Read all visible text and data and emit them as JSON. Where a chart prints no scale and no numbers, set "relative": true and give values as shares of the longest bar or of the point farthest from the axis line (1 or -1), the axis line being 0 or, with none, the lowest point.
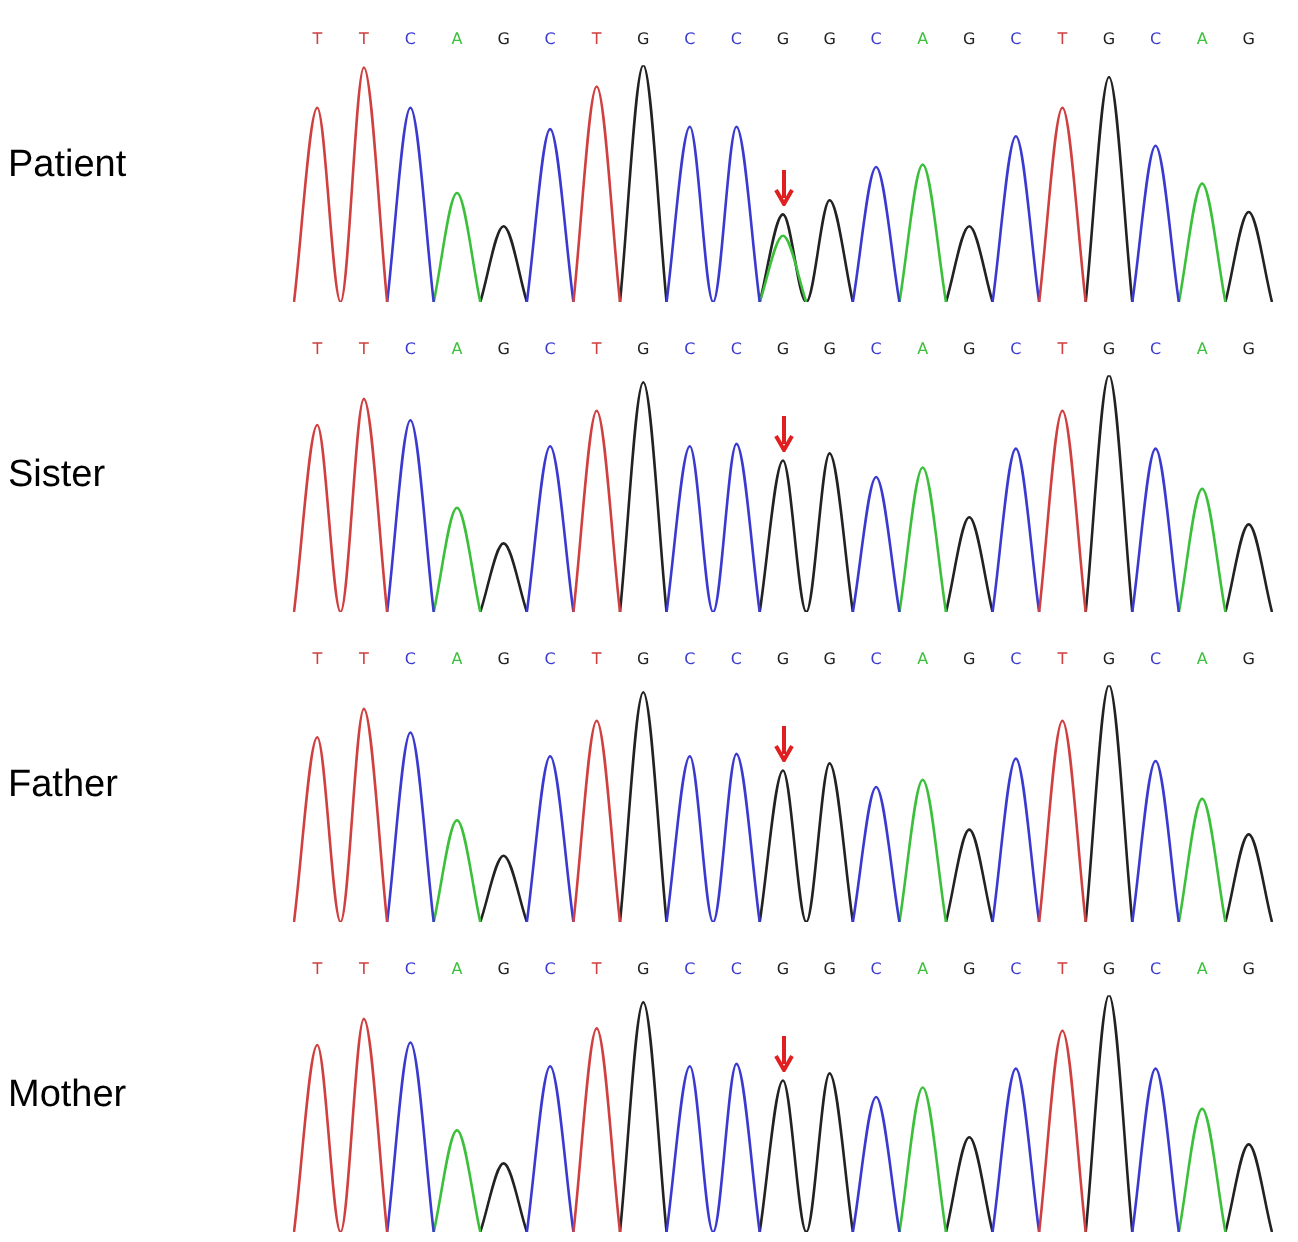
{
  "chart_data": [
    {
      "type": "line",
      "ylabel": "Patient",
      "relative": true,
      "legend": false,
      "grid": false,
      "marker": "none",
      "categories": [
        null,
        "T",
        null,
        "T",
        null,
        "C",
        null,
        "A",
        null,
        "G",
        null,
        "C",
        null,
        "T",
        null,
        "G",
        null,
        "C",
        null,
        "C",
        null,
        "G",
        null,
        "G",
        null,
        "C",
        null,
        "A",
        null,
        "G",
        null,
        "C",
        null,
        "T",
        null,
        "G",
        null,
        "C",
        null,
        "A",
        null,
        "G",
        null
      ],
      "series": [
        {
          "color": "#d04040",
          "values": [
            0,
            0.82,
            0,
            0.99,
            0,
            null,
            null,
            null,
            null,
            null,
            null,
            null,
            0,
            0.91,
            0,
            null,
            null,
            null,
            null,
            null,
            null,
            null,
            null,
            null,
            null,
            null,
            null,
            null,
            null,
            null,
            null,
            null,
            0,
            0.82,
            0,
            null,
            null,
            null,
            null,
            null,
            null,
            null,
            null
          ]
        },
        {
          "color": "#3a3ad0",
          "values": [
            null,
            null,
            null,
            null,
            0,
            0.82,
            0,
            null,
            null,
            null,
            0,
            0.73,
            0,
            null,
            null,
            null,
            0,
            0.74,
            0,
            0.74,
            0,
            null,
            null,
            null,
            0,
            0.57,
            0,
            null,
            null,
            null,
            0,
            0.7,
            0,
            null,
            null,
            null,
            0,
            0.66,
            0,
            null,
            null,
            null,
            null
          ]
        },
        {
          "color": "#3cc03c",
          "values": [
            null,
            null,
            null,
            null,
            null,
            null,
            0,
            0.46,
            0,
            null,
            null,
            null,
            null,
            null,
            null,
            null,
            null,
            null,
            null,
            null,
            0,
            0.28,
            0,
            null,
            null,
            null,
            0,
            0.58,
            0,
            null,
            null,
            null,
            null,
            null,
            null,
            null,
            null,
            null,
            0,
            0.5,
            0,
            null,
            null
          ]
        },
        {
          "color": "#222222",
          "values": [
            null,
            null,
            null,
            null,
            null,
            null,
            null,
            null,
            0,
            0.32,
            0,
            null,
            null,
            null,
            0,
            1,
            0,
            null,
            null,
            null,
            0,
            0.37,
            0,
            0.43,
            0,
            null,
            null,
            null,
            0,
            0.32,
            0,
            null,
            null,
            null,
            0,
            0.95,
            0,
            null,
            null,
            null,
            0,
            0.38,
            0
          ]
        }
      ]
    },
    {
      "type": "line",
      "ylabel": "Sister",
      "relative": true,
      "legend": false,
      "grid": false,
      "marker": "none",
      "categories": [
        null,
        "T",
        null,
        "T",
        null,
        "C",
        null,
        "A",
        null,
        "G",
        null,
        "C",
        null,
        "T",
        null,
        "G",
        null,
        "C",
        null,
        "C",
        null,
        "G",
        null,
        "G",
        null,
        "C",
        null,
        "A",
        null,
        "G",
        null,
        "C",
        null,
        "T",
        null,
        "G",
        null,
        "C",
        null,
        "A",
        null,
        "G",
        null
      ],
      "series": [
        {
          "color": "#d04040",
          "values": [
            0,
            0.79,
            0,
            0.9,
            0,
            null,
            null,
            null,
            null,
            null,
            null,
            null,
            0,
            0.85,
            0,
            null,
            null,
            null,
            null,
            null,
            null,
            null,
            null,
            null,
            null,
            null,
            null,
            null,
            null,
            null,
            null,
            null,
            0,
            0.85,
            0,
            null,
            null,
            null,
            null,
            null,
            null,
            null,
            null
          ]
        },
        {
          "color": "#3a3ad0",
          "values": [
            null,
            null,
            null,
            null,
            0,
            0.81,
            0,
            null,
            null,
            null,
            0,
            0.7,
            0,
            null,
            null,
            null,
            0,
            0.7,
            0,
            0.71,
            0,
            null,
            null,
            null,
            0,
            0.57,
            0,
            null,
            null,
            null,
            0,
            0.69,
            0,
            null,
            null,
            null,
            0,
            0.69,
            0,
            null,
            null,
            null,
            null
          ]
        },
        {
          "color": "#3cc03c",
          "values": [
            null,
            null,
            null,
            null,
            null,
            null,
            0,
            0.44,
            0,
            null,
            null,
            null,
            null,
            null,
            null,
            null,
            null,
            null,
            null,
            null,
            null,
            null,
            null,
            null,
            null,
            null,
            0,
            0.61,
            0,
            null,
            null,
            null,
            null,
            null,
            null,
            null,
            null,
            null,
            0,
            0.52,
            0,
            null,
            null
          ]
        },
        {
          "color": "#222222",
          "values": [
            null,
            null,
            null,
            null,
            null,
            null,
            null,
            null,
            0,
            0.29,
            0,
            null,
            null,
            null,
            0,
            0.97,
            0,
            null,
            null,
            null,
            0,
            0.64,
            0,
            0.67,
            0,
            null,
            null,
            null,
            0,
            0.4,
            0,
            null,
            null,
            null,
            0,
            1,
            0,
            null,
            null,
            null,
            0,
            0.37,
            0
          ]
        }
      ]
    },
    {
      "type": "line",
      "ylabel": "Father",
      "relative": true,
      "legend": false,
      "grid": false,
      "marker": "none",
      "categories": [
        null,
        "T",
        null,
        "T",
        null,
        "C",
        null,
        "A",
        null,
        "G",
        null,
        "C",
        null,
        "T",
        null,
        "G",
        null,
        "C",
        null,
        "C",
        null,
        "G",
        null,
        "G",
        null,
        "C",
        null,
        "A",
        null,
        "G",
        null,
        "C",
        null,
        "T",
        null,
        "G",
        null,
        "C",
        null,
        "A",
        null,
        "G",
        null
      ],
      "series": [
        {
          "color": "#d04040",
          "values": [
            0,
            0.78,
            0,
            0.9,
            0,
            null,
            null,
            null,
            null,
            null,
            null,
            null,
            0,
            0.85,
            0,
            null,
            null,
            null,
            null,
            null,
            null,
            null,
            null,
            null,
            null,
            null,
            null,
            null,
            null,
            null,
            null,
            null,
            0,
            0.85,
            0,
            null,
            null,
            null,
            null,
            null,
            null,
            null,
            null
          ]
        },
        {
          "color": "#3a3ad0",
          "values": [
            null,
            null,
            null,
            null,
            0,
            0.8,
            0,
            null,
            null,
            null,
            0,
            0.7,
            0,
            null,
            null,
            null,
            0,
            0.7,
            0,
            0.71,
            0,
            null,
            null,
            null,
            0,
            0.57,
            0,
            null,
            null,
            null,
            0,
            0.69,
            0,
            null,
            null,
            null,
            0,
            0.68,
            0,
            null,
            null,
            null,
            null
          ]
        },
        {
          "color": "#3cc03c",
          "values": [
            null,
            null,
            null,
            null,
            null,
            null,
            0,
            0.43,
            0,
            null,
            null,
            null,
            null,
            null,
            null,
            null,
            null,
            null,
            null,
            null,
            null,
            null,
            null,
            null,
            null,
            null,
            0,
            0.6,
            0,
            null,
            null,
            null,
            null,
            null,
            null,
            null,
            null,
            null,
            0,
            0.52,
            0,
            null,
            null
          ]
        },
        {
          "color": "#222222",
          "values": [
            null,
            null,
            null,
            null,
            null,
            null,
            null,
            null,
            0,
            0.28,
            0,
            null,
            null,
            null,
            0,
            0.97,
            0,
            null,
            null,
            null,
            0,
            0.64,
            0,
            0.67,
            0,
            null,
            null,
            null,
            0,
            0.39,
            0,
            null,
            null,
            null,
            0,
            1,
            0,
            null,
            null,
            null,
            0,
            0.37,
            0
          ]
        }
      ]
    },
    {
      "type": "line",
      "ylabel": "Mother",
      "relative": true,
      "legend": false,
      "grid": false,
      "marker": "none",
      "categories": [
        null,
        "T",
        null,
        "T",
        null,
        "C",
        null,
        "A",
        null,
        "G",
        null,
        "C",
        null,
        "T",
        null,
        "G",
        null,
        "C",
        null,
        "C",
        null,
        "G",
        null,
        "G",
        null,
        "C",
        null,
        "A",
        null,
        "G",
        null,
        "C",
        null,
        "T",
        null,
        "G",
        null,
        "C",
        null,
        "A",
        null,
        "G",
        null
      ],
      "series": [
        {
          "color": "#d04040",
          "values": [
            0,
            0.79,
            0,
            0.9,
            0,
            null,
            null,
            null,
            null,
            null,
            null,
            null,
            0,
            0.86,
            0,
            null,
            null,
            null,
            null,
            null,
            null,
            null,
            null,
            null,
            null,
            null,
            null,
            null,
            null,
            null,
            null,
            null,
            0,
            0.85,
            0,
            null,
            null,
            null,
            null,
            null,
            null,
            null,
            null
          ]
        },
        {
          "color": "#3a3ad0",
          "values": [
            null,
            null,
            null,
            null,
            0,
            0.8,
            0,
            null,
            null,
            null,
            0,
            0.7,
            0,
            null,
            null,
            null,
            0,
            0.7,
            0,
            0.71,
            0,
            null,
            null,
            null,
            0,
            0.57,
            0,
            null,
            null,
            null,
            0,
            0.69,
            0,
            null,
            null,
            null,
            0,
            0.69,
            0,
            null,
            null,
            null,
            null
          ]
        },
        {
          "color": "#3cc03c",
          "values": [
            null,
            null,
            null,
            null,
            null,
            null,
            0,
            0.43,
            0,
            null,
            null,
            null,
            null,
            null,
            null,
            null,
            null,
            null,
            null,
            null,
            null,
            null,
            null,
            null,
            null,
            null,
            0,
            0.61,
            0,
            null,
            null,
            null,
            null,
            null,
            null,
            null,
            null,
            null,
            0,
            0.52,
            0,
            null,
            null
          ]
        },
        {
          "color": "#222222",
          "values": [
            null,
            null,
            null,
            null,
            null,
            null,
            null,
            null,
            0,
            0.29,
            0,
            null,
            null,
            null,
            0,
            0.97,
            0,
            null,
            null,
            null,
            0,
            0.64,
            0,
            0.67,
            0,
            null,
            null,
            null,
            0,
            0.4,
            0,
            null,
            null,
            null,
            0,
            1,
            0,
            null,
            null,
            null,
            0,
            0.37,
            0
          ]
        }
      ]
    }
  ]
}
